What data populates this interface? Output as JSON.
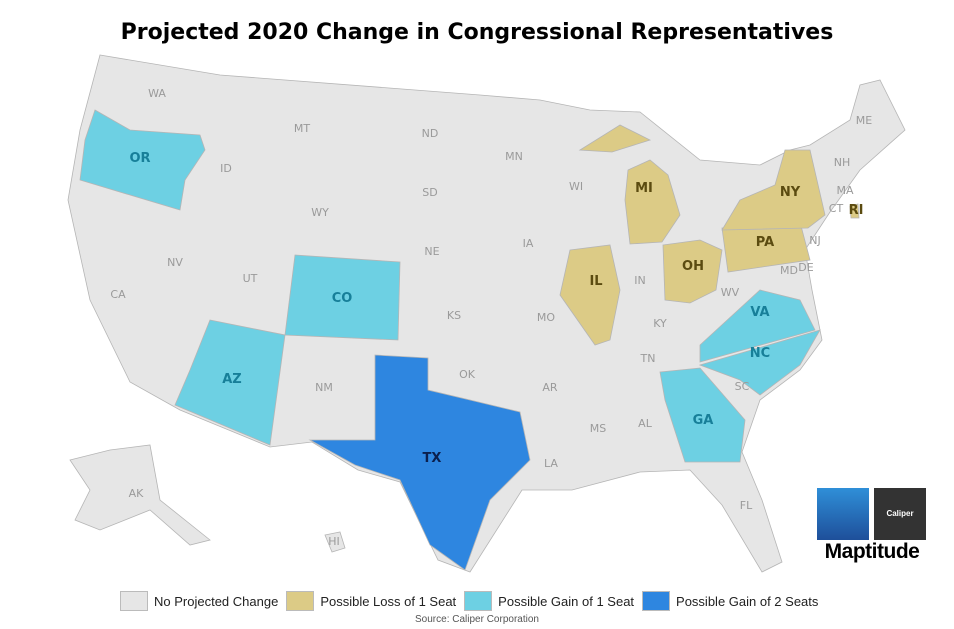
{
  "title": "Projected 2020 Change in Congressional Representatives",
  "colors": {
    "none": "#e6e6e6",
    "loss1": "#dccb86",
    "gain1": "#6dd0e3",
    "gain2": "#2e86e0",
    "border": "#b5b5b5"
  },
  "legend": [
    {
      "key": "none",
      "label": "No Projected Change"
    },
    {
      "key": "loss1",
      "label": "Possible Loss of 1 Seat"
    },
    {
      "key": "gain1",
      "label": "Possible Gain of 1 Seat"
    },
    {
      "key": "gain2",
      "label": "Possible Gain of 2 Seats"
    }
  ],
  "source": "Source: Caliper Corporation",
  "logo": {
    "brand": "Caliper",
    "product": "Maptitude"
  },
  "states": [
    {
      "code": "OR",
      "cat": "gain1"
    },
    {
      "code": "CO",
      "cat": "gain1"
    },
    {
      "code": "AZ",
      "cat": "gain1"
    },
    {
      "code": "TX",
      "cat": "gain2"
    },
    {
      "code": "GA",
      "cat": "gain1"
    },
    {
      "code": "NC",
      "cat": "gain1"
    },
    {
      "code": "VA",
      "cat": "gain1"
    },
    {
      "code": "IL",
      "cat": "loss1"
    },
    {
      "code": "MI",
      "cat": "loss1"
    },
    {
      "code": "OH",
      "cat": "loss1"
    },
    {
      "code": "PA",
      "cat": "loss1"
    },
    {
      "code": "NY",
      "cat": "loss1"
    },
    {
      "code": "RI",
      "cat": "loss1"
    },
    {
      "code": "WA",
      "cat": "none"
    },
    {
      "code": "ID",
      "cat": "none"
    },
    {
      "code": "MT",
      "cat": "none"
    },
    {
      "code": "ND",
      "cat": "none"
    },
    {
      "code": "MN",
      "cat": "none"
    },
    {
      "code": "SD",
      "cat": "none"
    },
    {
      "code": "WY",
      "cat": "none"
    },
    {
      "code": "WI",
      "cat": "none"
    },
    {
      "code": "NV",
      "cat": "none"
    },
    {
      "code": "UT",
      "cat": "none"
    },
    {
      "code": "NE",
      "cat": "none"
    },
    {
      "code": "IA",
      "cat": "none"
    },
    {
      "code": "CA",
      "cat": "none"
    },
    {
      "code": "KS",
      "cat": "none"
    },
    {
      "code": "MO",
      "cat": "none"
    },
    {
      "code": "IN",
      "cat": "none"
    },
    {
      "code": "KY",
      "cat": "none"
    },
    {
      "code": "WV",
      "cat": "none"
    },
    {
      "code": "NM",
      "cat": "none"
    },
    {
      "code": "OK",
      "cat": "none"
    },
    {
      "code": "AR",
      "cat": "none"
    },
    {
      "code": "TN",
      "cat": "none"
    },
    {
      "code": "SC",
      "cat": "none"
    },
    {
      "code": "MS",
      "cat": "none"
    },
    {
      "code": "AL",
      "cat": "none"
    },
    {
      "code": "LA",
      "cat": "none"
    },
    {
      "code": "FL",
      "cat": "none"
    },
    {
      "code": "AK",
      "cat": "none"
    },
    {
      "code": "HI",
      "cat": "none"
    },
    {
      "code": "ME",
      "cat": "none"
    },
    {
      "code": "NH",
      "cat": "none"
    },
    {
      "code": "MA",
      "cat": "none"
    },
    {
      "code": "CT",
      "cat": "none"
    },
    {
      "code": "NJ",
      "cat": "none"
    },
    {
      "code": "MD",
      "cat": "none"
    },
    {
      "code": "DE",
      "cat": "none"
    }
  ]
}
